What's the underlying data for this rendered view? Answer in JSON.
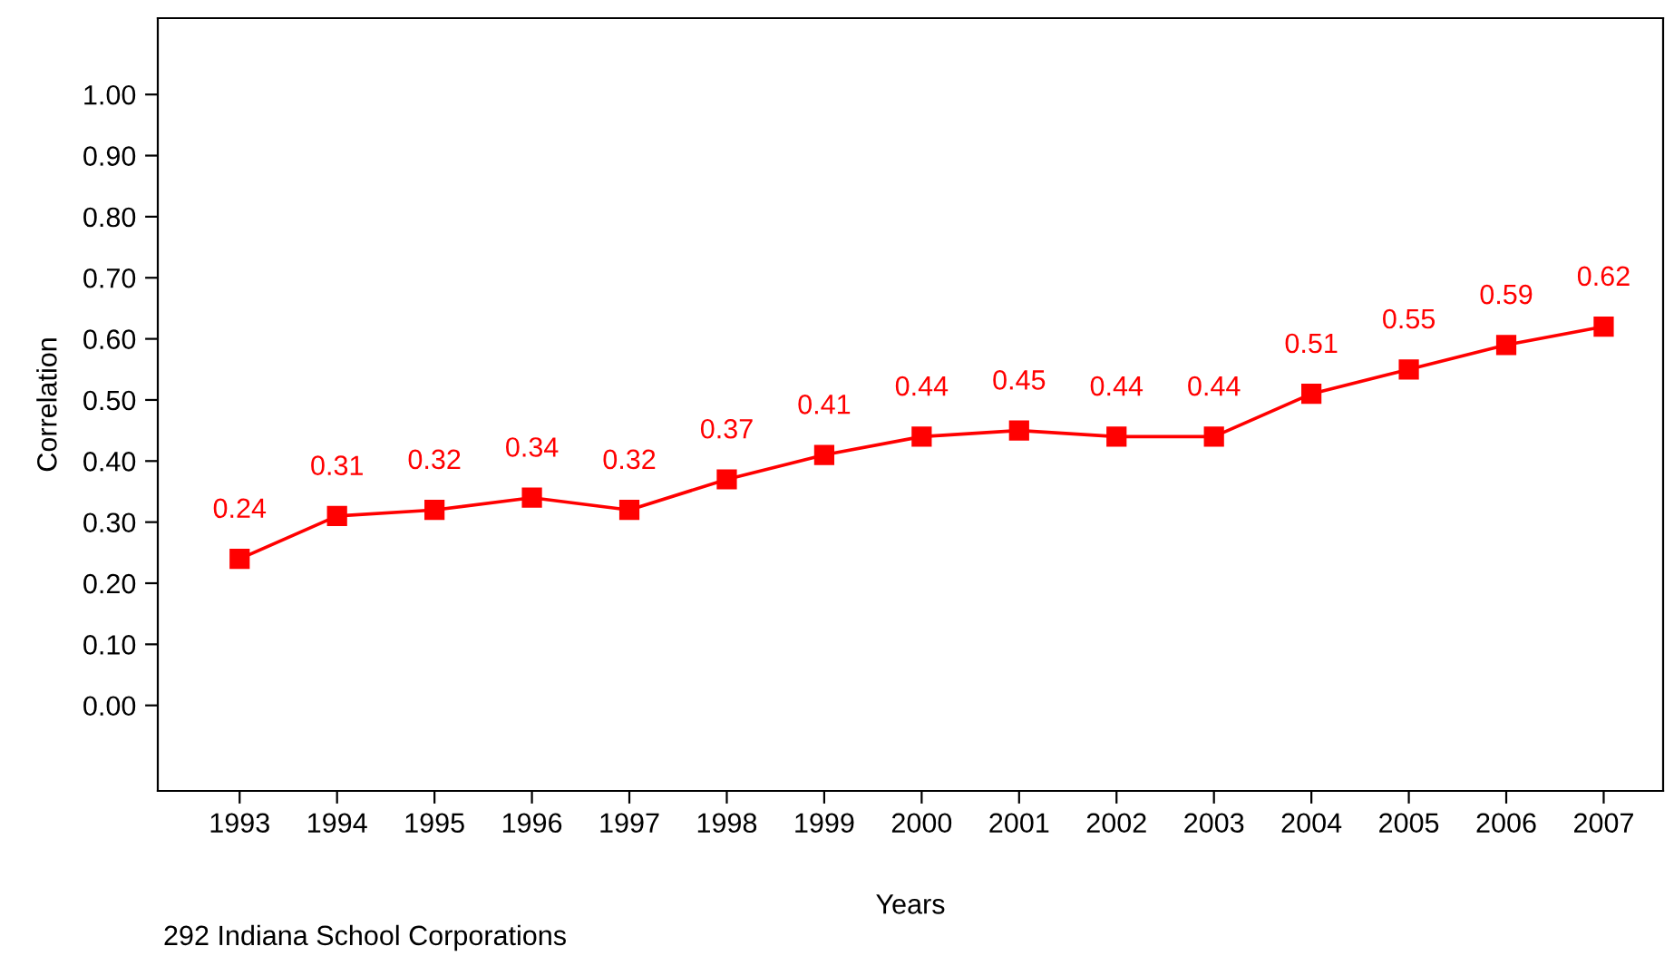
{
  "chart_data": {
    "type": "line",
    "xlabel": "Years",
    "ylabel": "Correlation",
    "x": [
      1993,
      1994,
      1995,
      1996,
      1997,
      1998,
      1999,
      2000,
      2001,
      2002,
      2003,
      2004,
      2005,
      2006,
      2007
    ],
    "series": [
      {
        "color": "#ff0000",
        "values": [
          0.24,
          0.31,
          0.32,
          0.34,
          0.32,
          0.37,
          0.41,
          0.44,
          0.45,
          0.44,
          0.44,
          0.51,
          0.55,
          0.59,
          0.62
        ]
      }
    ],
    "xlim": [
      1992.16,
      2007.61
    ],
    "xticks": [
      1993,
      1994,
      1995,
      1996,
      1997,
      1998,
      1999,
      2000,
      2001,
      2002,
      2003,
      2004,
      2005,
      2006,
      2007
    ],
    "ylim": [
      -0.14,
      1.125
    ],
    "yticks": [
      {
        "value": 0,
        "label": "0.00"
      },
      {
        "value": 0.1,
        "label": "0.10"
      },
      {
        "value": 0.2,
        "label": "0.20"
      },
      {
        "value": 0.3,
        "label": "0.30"
      },
      {
        "value": 0.4,
        "label": "0.40"
      },
      {
        "value": 0.5,
        "label": "0.50"
      },
      {
        "value": 0.6,
        "label": "0.60"
      },
      {
        "value": 0.7,
        "label": "0.70"
      },
      {
        "value": 0.8,
        "label": "0.80"
      },
      {
        "value": 0.9,
        "label": "0.90"
      },
      {
        "value": 1.0,
        "label": "1.00"
      }
    ],
    "marker": "square",
    "line_style": "solid",
    "data_labels": true,
    "grid": false,
    "legend": false,
    "annotations": [
      "292 Indiana School Corporations"
    ]
  }
}
